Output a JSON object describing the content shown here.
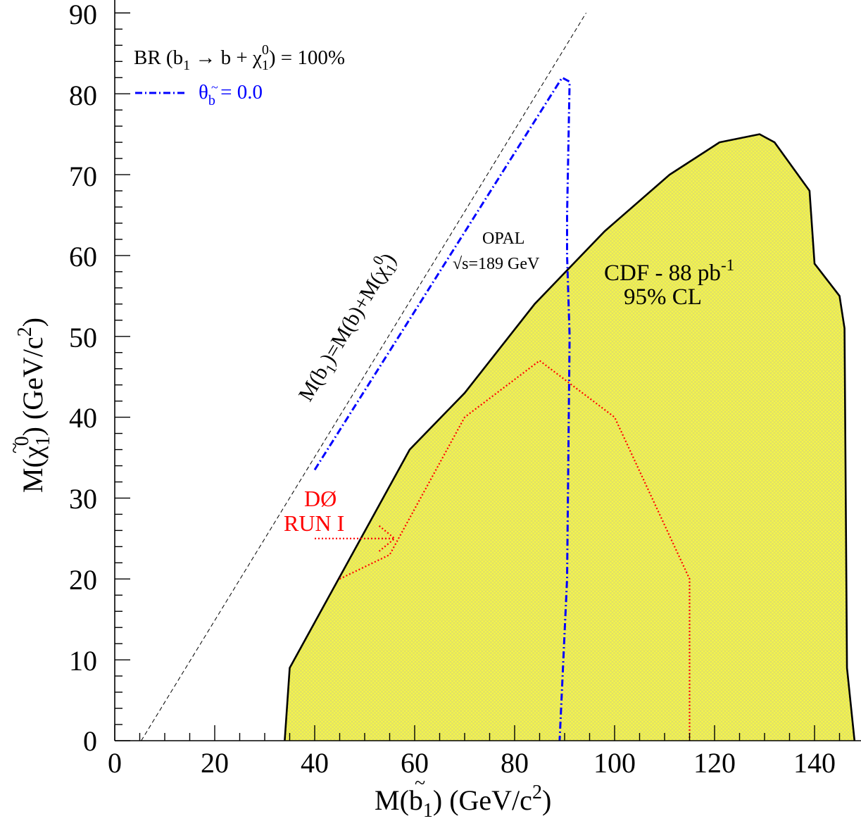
{
  "chart_data": {
    "type": "area",
    "x_axis": {
      "label_parts": {
        "m": "M(",
        "b": "b",
        "tilde": "~",
        "sub": "1",
        "close": ") (GeV/c",
        "sup": "2",
        "end": ")"
      },
      "range": [
        0,
        148
      ],
      "ticks": [
        0,
        20,
        40,
        60,
        80,
        100,
        120,
        140
      ],
      "tick_labels": [
        "0",
        "20",
        "40",
        "60",
        "80",
        "100",
        "120",
        "140"
      ]
    },
    "y_axis": {
      "label_parts": {
        "m": "M(",
        "chi": "χ",
        "tilde": "~",
        "sub": "1",
        "sup": "0",
        "close": ") (GeV/c",
        "sup2": "2",
        "end": ")"
      },
      "range": [
        0,
        90
      ],
      "ticks": [
        0,
        10,
        20,
        30,
        40,
        50,
        60,
        70,
        80,
        90
      ],
      "tick_labels": [
        "0",
        "10",
        "20",
        "30",
        "40",
        "50",
        "60",
        "70",
        "80",
        "90"
      ]
    },
    "kinematic_line": {
      "x": [
        5.3,
        94.3
      ],
      "y": [
        0,
        90
      ],
      "label_parts": {
        "m": "M(",
        "b": "b",
        "sub": "1",
        "mid": ")=M(b)+M(",
        "chi": "χ",
        "sub2": "1",
        "sup2": "0",
        "end": ")"
      }
    },
    "cdf_region": {
      "name_parts": {
        "main": "CDF - 88 pb",
        "sup": "-1",
        "line2": "95% CL"
      },
      "color": "#f5f54a",
      "x": [
        34,
        35,
        59,
        70,
        84,
        98,
        111,
        121,
        129,
        132,
        139,
        140,
        145,
        146,
        146.5,
        148
      ],
      "y": [
        0,
        9,
        36,
        43,
        54,
        63,
        70,
        74,
        75,
        74,
        68,
        59,
        55,
        51,
        9,
        0
      ]
    },
    "d0_contour": {
      "name_parts": {
        "line1": "DØ",
        "line2": "RUN I"
      },
      "color": "#ff0000",
      "x": [
        45,
        55,
        70,
        85,
        100,
        115,
        115
      ],
      "y": [
        20,
        23,
        40,
        47,
        40,
        20,
        0
      ]
    },
    "d0_arrow": {
      "x": [
        40,
        56
      ],
      "y": [
        25,
        25
      ]
    },
    "opal_contour": {
      "name_parts": {
        "line1": "OPAL",
        "root": "√",
        "line2": "s=189 GeV"
      },
      "color": "#0000ff",
      "x": [
        40,
        89.5,
        91,
        90.5,
        90.5,
        91,
        90.5,
        89
      ],
      "y": [
        33.5,
        82,
        81.5,
        65,
        60,
        50,
        20,
        0
      ]
    },
    "legend": {
      "br_parts": {
        "br": "BR (",
        "b": "b",
        "sub": "1",
        "arrow": " → b + ",
        "chi": "χ",
        "sub2": "1",
        "sup2": "0",
        "end": ") = 100%"
      },
      "opal_parts": {
        "theta": "θ",
        "sub": "b",
        "tilde": "~",
        "value": " = 0.0"
      },
      "placement": "top-left"
    }
  }
}
